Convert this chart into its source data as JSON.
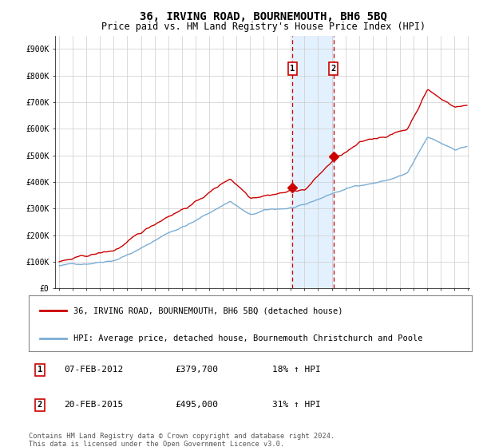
{
  "title": "36, IRVING ROAD, BOURNEMOUTH, BH6 5BQ",
  "subtitle": "Price paid vs. HM Land Registry's House Price Index (HPI)",
  "title_fontsize": 10,
  "subtitle_fontsize": 8.5,
  "x_start_year": 1995,
  "x_end_year": 2025,
  "ylim": [
    0,
    950000
  ],
  "yticks": [
    0,
    100000,
    200000,
    300000,
    400000,
    500000,
    600000,
    700000,
    800000,
    900000
  ],
  "ytick_labels": [
    "£0",
    "£100K",
    "£200K",
    "£300K",
    "£400K",
    "£500K",
    "£600K",
    "£700K",
    "£800K",
    "£900K"
  ],
  "property_color": "#cc0000",
  "hpi_color": "#7aadd4",
  "property_label": "36, IRVING ROAD, BOURNEMOUTH, BH6 5BQ (detached house)",
  "hpi_label": "HPI: Average price, detached house, Bournemouth Christchurch and Poole",
  "sale1_year": 2012,
  "sale1_month": 2,
  "sale1_price": 379700,
  "sale2_year": 2015,
  "sale2_month": 2,
  "sale2_price": 495000,
  "annotation1_date": "07-FEB-2012",
  "annotation1_price": "£379,700",
  "annotation1_hpi": "18% ↑ HPI",
  "annotation2_date": "20-FEB-2015",
  "annotation2_price": "£495,000",
  "annotation2_hpi": "31% ↑ HPI",
  "footnote": "Contains HM Land Registry data © Crown copyright and database right 2024.\nThis data is licensed under the Open Government Licence v3.0.",
  "background_color": "#ffffff",
  "grid_color": "#cccccc",
  "shade_color": "#ddeeff"
}
